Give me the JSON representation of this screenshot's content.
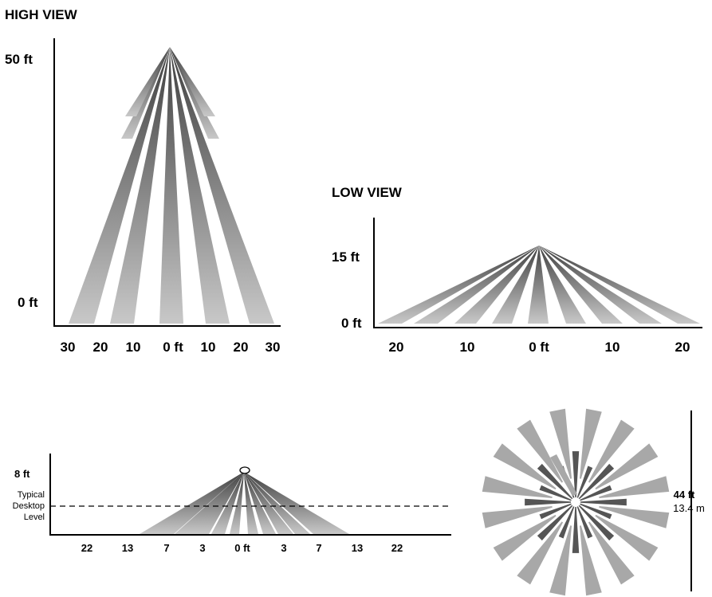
{
  "high_view": {
    "title": "HIGH VIEW",
    "y_labels": [
      "50 ft",
      "0 ft"
    ],
    "x_labels": [
      "30",
      "20",
      "10",
      "0 ft",
      "10",
      "20",
      "30"
    ]
  },
  "low_view": {
    "title": "LOW VIEW",
    "y_labels": [
      "15 ft",
      "0 ft"
    ],
    "x_labels": [
      "20",
      "10",
      "0 ft",
      "10",
      "20"
    ]
  },
  "side_view": {
    "height_label": "8 ft",
    "desktop_label_lines": [
      "Typical",
      "Desktop",
      "Level"
    ],
    "x_labels": [
      "22",
      "13",
      "7",
      "3",
      "0 ft",
      "3",
      "7",
      "13",
      "22"
    ]
  },
  "top_view": {
    "size_label": "44 ft",
    "size_metric": "13.4 m"
  },
  "colors": {
    "beam_dark": "#4a4a4a",
    "beam_light": "#c4c4c4",
    "outer_spoke": "#a8a8a8",
    "inner_spoke": "#555555"
  }
}
